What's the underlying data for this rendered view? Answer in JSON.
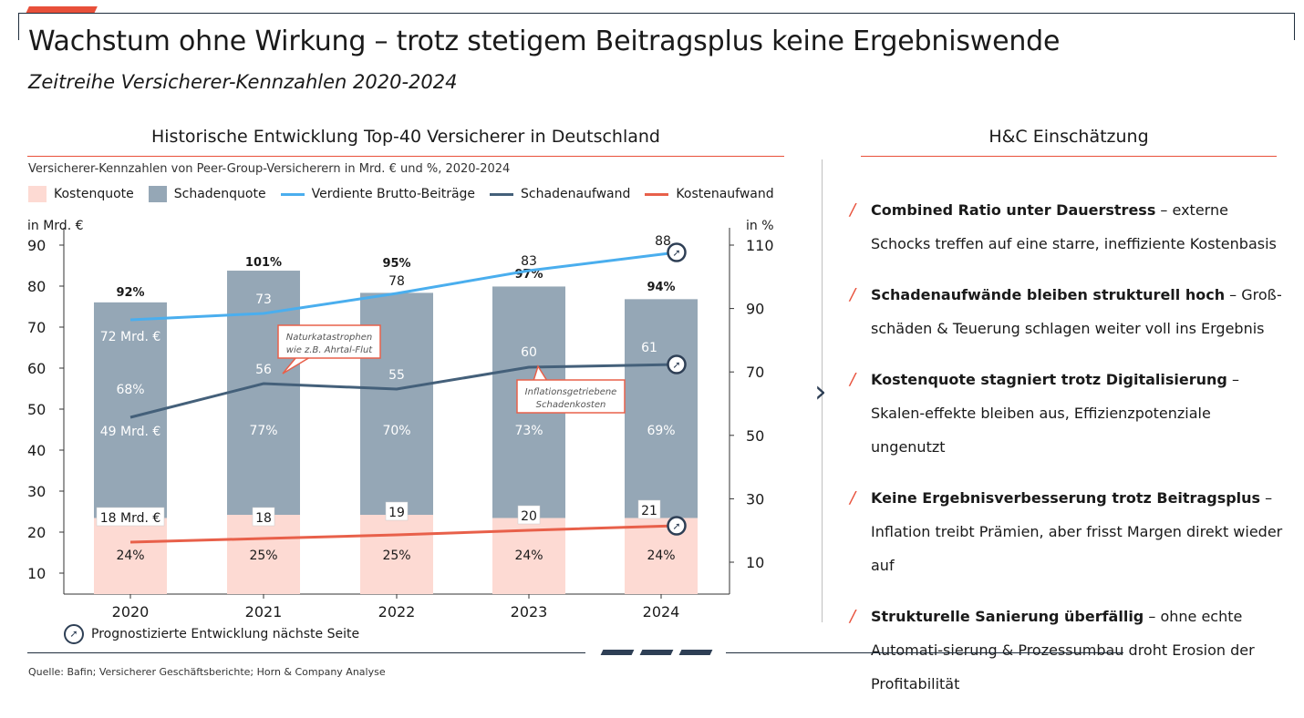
{
  "header": {
    "title": "Wachstum ohne Wirkung – trotz stetigem Beitragsplus keine Ergebniswende",
    "subtitle": "Zeitreihe Versicherer-Kennzahlen 2020-2024"
  },
  "left": {
    "heading": "Historische Entwicklung Top-40 Versicherer in Deutschland",
    "description": "Versicherer-Kennzahlen von Peer-Group-Versicherern in Mrd. € und %, 2020-2024",
    "forecast_note": "Prognostizierte Entwicklung nächste Seite"
  },
  "right": {
    "heading": "H&C Einschätzung",
    "points": [
      {
        "bold": "Combined Ratio unter Dauerstress",
        "text": " – externe Schocks treffen auf eine starre, ineffiziente Kostenbasis"
      },
      {
        "bold": "Schadenaufwände bleiben strukturell hoch",
        "text": " – Groß-schäden & Teuerung schlagen weiter voll ins Ergebnis"
      },
      {
        "bold": "Kostenquote stagniert trotz Digitalisierung",
        "text": " – Skalen-effekte bleiben aus, Effizienzpotenziale ungenutzt"
      },
      {
        "bold": "Keine Ergebnisverbesserung trotz Beitragsplus",
        "text": " – Inflation treibt Prämien, aber frisst Margen direkt wieder auf"
      },
      {
        "bold": "Strukturelle Sanierung überfällig",
        "text": " – ohne echte Automati-sierung & Prozessumbau droht Erosion der Profitabilität"
      }
    ]
  },
  "source": "Quelle: Bafin; Versicherer Geschäftsberichte; Horn & Company Analyse",
  "chart_data": {
    "type": "bar",
    "categories": [
      "2020",
      "2021",
      "2022",
      "2023",
      "2024"
    ],
    "legend": [
      {
        "name": "Kostenquote",
        "color": "#fddad3",
        "kind": "box"
      },
      {
        "name": "Schadenquote",
        "color": "#95a7b6",
        "kind": "box"
      },
      {
        "name": "Verdiente Brutto-Beiträge",
        "color": "#4aaeee",
        "kind": "line"
      },
      {
        "name": "Schadenaufwand",
        "color": "#44607a",
        "kind": "line"
      },
      {
        "name": "Kostenaufwand",
        "color": "#e8604a",
        "kind": "line"
      }
    ],
    "left_axis": {
      "label": "in Mrd. €",
      "ticks": [
        10,
        20,
        30,
        40,
        50,
        60,
        70,
        80,
        90
      ],
      "range": [
        5,
        90
      ]
    },
    "right_axis": {
      "label": "in %",
      "ticks": [
        10,
        30,
        50,
        70,
        90,
        110
      ],
      "range": [
        -3.7,
        110
      ]
    },
    "bars": {
      "kostenquote": [
        24,
        25,
        25,
        24,
        24
      ],
      "schadenquote": [
        68,
        77,
        70,
        73,
        69
      ],
      "combined_ratio_labels": [
        "92%",
        "101%",
        "95%",
        "97%",
        "94%"
      ],
      "kostenquote_labels": [
        "24%",
        "25%",
        "25%",
        "24%",
        "24%"
      ],
      "schadenquote_labels": [
        "68%",
        "77%",
        "70%",
        "73%",
        "69%"
      ]
    },
    "series": [
      {
        "name": "Verdiente Brutto-Beiträge",
        "values": [
          72,
          73,
          78,
          83,
          88
        ],
        "labels": [
          "72 Mrd. €",
          "73",
          "78",
          "83",
          "88"
        ]
      },
      {
        "name": "Schadenaufwand",
        "values": [
          49,
          56,
          55,
          60,
          61
        ],
        "labels": [
          "49 Mrd. €",
          "56",
          "55",
          "60",
          "61"
        ]
      },
      {
        "name": "Kostenaufwand",
        "values": [
          18,
          18,
          19,
          20,
          21
        ],
        "labels": [
          "18 Mrd. €",
          "18",
          "19",
          "20",
          "21"
        ]
      }
    ],
    "annotations": [
      {
        "text": [
          "Naturkatastrophen",
          "wie z.B. Ahrtal-Flut"
        ]
      },
      {
        "text": [
          "Inflationsgetriebene",
          "Schadenkosten"
        ]
      }
    ]
  }
}
